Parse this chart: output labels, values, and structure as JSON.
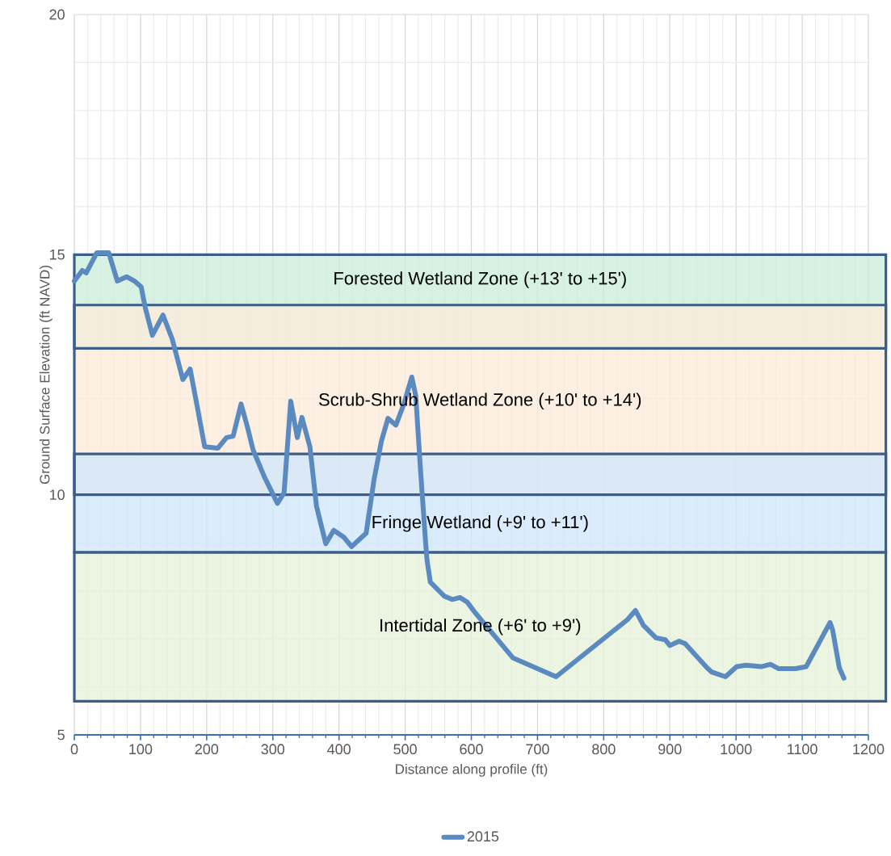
{
  "chart_data": {
    "type": "line",
    "xlabel": "Distance along profile (ft)",
    "ylabel": "Ground Surface Elevation (ft NAVD)",
    "xlim": [
      0,
      1200
    ],
    "ylim": [
      5,
      20
    ],
    "xticks": [
      0,
      100,
      200,
      300,
      400,
      500,
      600,
      700,
      800,
      900,
      1000,
      1100,
      1200
    ],
    "yticks": [
      5,
      10,
      15,
      20
    ],
    "grid": true,
    "legend": "bottom",
    "bands": [
      {
        "axis": "y",
        "from": 13.05,
        "to": 15,
        "label": "Forested Wetland Zone (+13' to +15')",
        "color": "#c9eed9"
      },
      {
        "axis": "y",
        "from": 10,
        "to": 13.95,
        "label": "Scrub-Shrub Wetland Zone (+10' to +14')",
        "color": "#fde9da"
      },
      {
        "axis": "y",
        "from": 8.8,
        "to": 10.85,
        "label": "Fringe Wetland (+9' to +11')",
        "color": "#cfe5fc"
      },
      {
        "axis": "y",
        "from": 5.7,
        "to": 8.8,
        "label": "Intertidal Zone (+6' to +9')",
        "color": "#e4f1d8"
      }
    ],
    "series": [
      {
        "name": "2015",
        "color": "#5a8ac0",
        "x": [
          0,
          12,
          18,
          34,
          52,
          65,
          79,
          91,
          101,
          107,
          118,
          134,
          148,
          164,
          175,
          185,
          197,
          217,
          230,
          240,
          252,
          262,
          270,
          287,
          307,
          317,
          327,
          337,
          344,
          356,
          366,
          380,
          392,
          407,
          419,
          441,
          453,
          464,
          474,
          486,
          498,
          510,
          516,
          523,
          531,
          533,
          538,
          559,
          571,
          583,
          594,
          606,
          663,
          728,
          836,
          848,
          860,
          879,
          893,
          900,
          914,
          923,
          956,
          963,
          984,
          1001,
          1015,
          1038,
          1052,
          1064,
          1090,
          1106,
          1142,
          1146,
          1156,
          1163
        ],
        "values": [
          14.45,
          14.67,
          14.62,
          15.04,
          15.04,
          14.45,
          14.54,
          14.45,
          14.33,
          13.91,
          13.32,
          13.74,
          13.24,
          12.4,
          12.62,
          11.89,
          11.0,
          10.97,
          11.19,
          11.22,
          11.89,
          11.39,
          10.94,
          10.38,
          9.82,
          10.04,
          11.95,
          11.19,
          11.61,
          11.0,
          9.76,
          8.98,
          9.26,
          9.12,
          8.92,
          9.2,
          10.32,
          11.11,
          11.59,
          11.45,
          11.89,
          12.45,
          12.06,
          10.55,
          8.98,
          8.64,
          8.18,
          7.89,
          7.82,
          7.86,
          7.76,
          7.54,
          6.6,
          6.21,
          7.4,
          7.59,
          7.28,
          7.02,
          6.98,
          6.86,
          6.95,
          6.9,
          6.4,
          6.31,
          6.21,
          6.42,
          6.45,
          6.42,
          6.47,
          6.38,
          6.38,
          6.42,
          7.34,
          7.18,
          6.4,
          6.18
        ]
      }
    ]
  }
}
